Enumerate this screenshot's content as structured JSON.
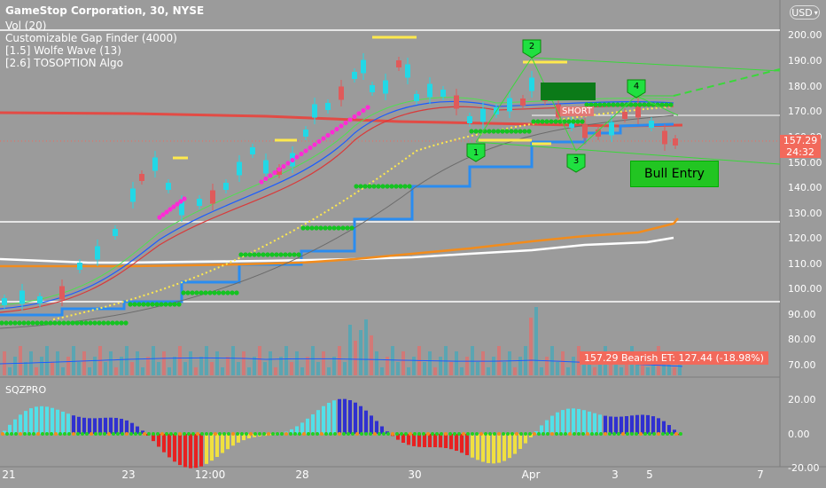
{
  "header": {
    "title": "GameStop Corporation, 30, NYSE",
    "indicators": [
      "Vol (20)",
      "Customizable Gap Finder (4000)",
      "[1.5] Wolfe Wave (13)",
      "[2.6] TOSOPTION Algo"
    ]
  },
  "currency": {
    "label": "USD"
  },
  "price_axis": {
    "ticks": [
      "200.00",
      "190.00",
      "180.00",
      "170.00",
      "160.00",
      "150.00",
      "140.00",
      "130.00",
      "120.00",
      "110.00",
      "100.00",
      "90.00",
      "80.00",
      "70.00"
    ],
    "last_price": "157.29",
    "countdown": "24:32"
  },
  "sqz_panel": {
    "title": "SQZPRO",
    "ticks": [
      "20.00",
      "0.00",
      "-20.00"
    ]
  },
  "time_axis": {
    "ticks": [
      "21",
      "23",
      "12:00",
      "28",
      "30",
      "Apr",
      "3",
      "5",
      "7"
    ]
  },
  "annotations": {
    "bearish_label": "157.29 Bearish ET: 127.44 (-18.98%)",
    "bull_entry": "Bull Entry",
    "short_label": "SHORT",
    "wolfe_points": [
      "1",
      "2",
      "3",
      "4"
    ]
  },
  "colors": {
    "background": "#9b9b9b",
    "candle_up": "#22d8e6",
    "candle_down": "#e05a5a",
    "accent_green": "#1fbf30",
    "accent_blue": "#2a8cf0",
    "accent_orange": "#f28c1c",
    "magenta": "#ff2bd6"
  }
}
